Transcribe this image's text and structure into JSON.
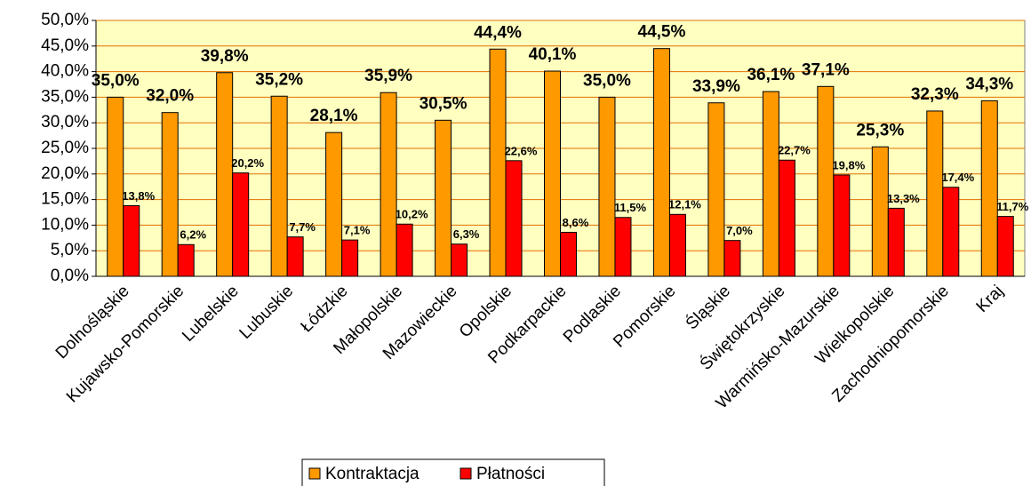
{
  "chart_data": {
    "type": "bar",
    "categories": [
      "Dolnośląskie",
      "Kujawsko-Pomorskie",
      "Lubelskie",
      "Lubuskie",
      "Łódzkie",
      "Małopolskie",
      "Mazowieckie",
      "Opolskie",
      "Podkarpackie",
      "Podlaskie",
      "Pomorskie",
      "Śląskie",
      "Świętokrzyskie",
      "Warmińsko-Mazurskie",
      "Wielkopolskie",
      "Zachodniopomorskie",
      "Kraj"
    ],
    "series": [
      {
        "name": "Kontraktacja",
        "color": "#ff9900",
        "values": [
          35.0,
          32.0,
          39.8,
          35.2,
          28.1,
          35.9,
          30.5,
          44.4,
          40.1,
          35.0,
          44.5,
          33.9,
          36.1,
          37.1,
          25.3,
          32.3,
          34.3
        ],
        "value_labels": [
          "35,0%",
          "32,0%",
          "39,8%",
          "35,2%",
          "28,1%",
          "35,9%",
          "30,5%",
          "44,4%",
          "40,1%",
          "35,0%",
          "44,5%",
          "33,9%",
          "36,1%",
          "37,1%",
          "25,3%",
          "32,3%",
          "34,3%"
        ]
      },
      {
        "name": "Płatności",
        "color": "#ff0000",
        "values": [
          13.8,
          6.2,
          20.2,
          7.7,
          7.1,
          10.2,
          6.3,
          22.6,
          8.6,
          11.5,
          12.1,
          7.0,
          22.7,
          19.8,
          13.3,
          17.4,
          11.7
        ],
        "value_labels": [
          "13,8%",
          "6,2%",
          "20,2%",
          "7,7%",
          "7,1%",
          "10,2%",
          "6,3%",
          "22,6%",
          "8,6%",
          "11,5%",
          "12,1%",
          "7,0%",
          "22,7%",
          "19,8%",
          "13,3%",
          "17,4%",
          "11,7%"
        ]
      }
    ],
    "ylim": [
      0,
      50
    ],
    "yticks": [
      {
        "value": 0,
        "label": "0,0%"
      },
      {
        "value": 5,
        "label": "5,0%"
      },
      {
        "value": 10,
        "label": "10,0%"
      },
      {
        "value": 15,
        "label": "15,0%"
      },
      {
        "value": 20,
        "label": "20,0%"
      },
      {
        "value": 25,
        "label": "25,0%"
      },
      {
        "value": 30,
        "label": "30,0%"
      },
      {
        "value": 35,
        "label": "35,0%"
      },
      {
        "value": 40,
        "label": "40,0%"
      },
      {
        "value": 45,
        "label": "45,0%"
      },
      {
        "value": 50,
        "label": "50,0%"
      }
    ],
    "grid": true,
    "legend": "bottom"
  }
}
